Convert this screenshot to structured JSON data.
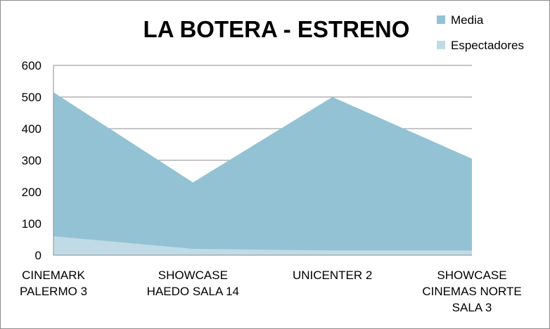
{
  "chart_data": {
    "type": "area",
    "title": "LA BOTERA - ESTRENO",
    "categories": [
      [
        "CINEMARK",
        "PALERMO 3"
      ],
      [
        "SHOWCASE",
        "HAEDO  SALA 14"
      ],
      [
        "UNICENTER 2"
      ],
      [
        "SHOWCASE",
        "CINEMAS  NORTE",
        "SALA 3"
      ]
    ],
    "series": [
      {
        "name": "Media",
        "values": [
          515,
          230,
          500,
          305
        ],
        "color": "#93c2d4"
      },
      {
        "name": "Espectadores",
        "values": [
          60,
          20,
          15,
          15
        ],
        "color": "#c0dbe5"
      }
    ],
    "ylim": [
      0,
      600
    ],
    "yticks": [
      "0",
      "100",
      "200",
      "300",
      "400",
      "500",
      "600"
    ],
    "grid": true,
    "legend_position": "top-right",
    "stacked": false
  }
}
